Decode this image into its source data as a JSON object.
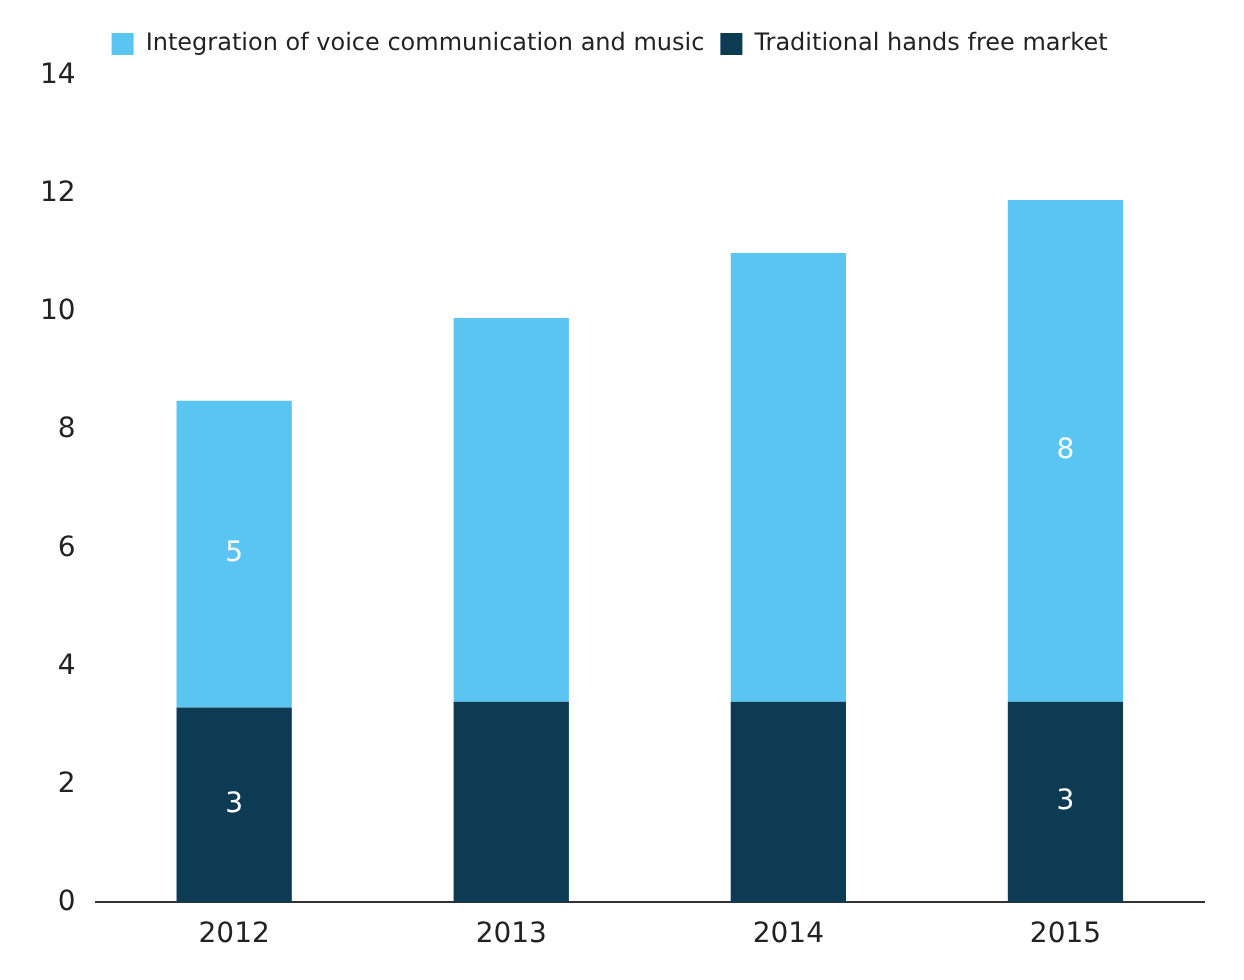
{
  "chart_data": {
    "type": "bar",
    "stacked": true,
    "categories": [
      "2012",
      "2013",
      "2014",
      "2015"
    ],
    "series": [
      {
        "name": "Traditional hands free market",
        "color": "#0e3b54",
        "values": [
          3.3,
          3.4,
          3.4,
          3.4
        ],
        "value_labels": [
          "3",
          null,
          null,
          "3"
        ]
      },
      {
        "name": "Integration of voice communication and music",
        "color": "#5bc5f2",
        "values": [
          5.2,
          6.5,
          7.6,
          8.5
        ],
        "value_labels": [
          "5",
          null,
          null,
          "8"
        ]
      }
    ],
    "ylim": [
      0,
      14
    ],
    "yticks": [
      0,
      2,
      4,
      6,
      8,
      10,
      12,
      14
    ],
    "grid": false,
    "legend": "top left"
  }
}
